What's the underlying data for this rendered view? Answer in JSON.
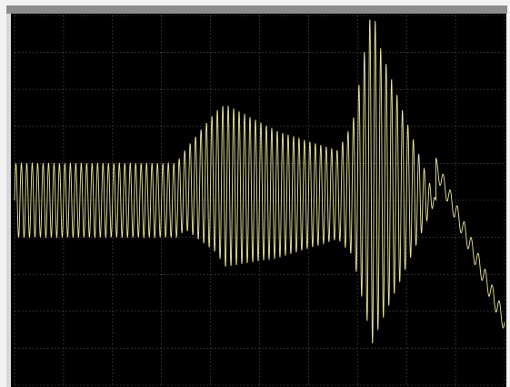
{
  "window": {
    "title": ""
  },
  "colors": {
    "background": "#000000",
    "grid": "#5f5f5f",
    "trace": "#e6e69a",
    "frame": "#8c8c8c"
  },
  "chart_data": {
    "type": "line",
    "title": "",
    "xlabel": "",
    "ylabel": "",
    "grid": true,
    "legend": "none",
    "xlim": [
      0,
      10
    ],
    "ylim": [
      -5,
      5
    ],
    "series": [
      {
        "name": "",
        "color": "#e6e69a",
        "envelope": {
          "x": [
            0.0,
            3.3,
            3.3,
            3.5,
            4.1,
            4.3,
            5.4,
            6.6,
            6.9,
            7.3,
            7.45,
            7.9,
            8.6
          ],
          "amplitude": [
            1.0,
            1.0,
            1.0,
            1.1,
            1.9,
            2.2,
            1.7,
            1.2,
            1.8,
            4.6,
            3.8,
            2.3,
            0.0
          ],
          "center": [
            0.0,
            0.0,
            0.0,
            0.3,
            0.5,
            0.4,
            0.15,
            0.15,
            0.3,
            0.7,
            0.4,
            0.2,
            0.0
          ]
        },
        "cycles_per_unit": 9,
        "tail": {
          "x_start": 8.6,
          "x_end": 10.0,
          "y_start": 0.9,
          "y_end": -3.3,
          "ripple_amplitude": 0.25,
          "ripple_cycles_per_unit": 7
        }
      }
    ]
  }
}
